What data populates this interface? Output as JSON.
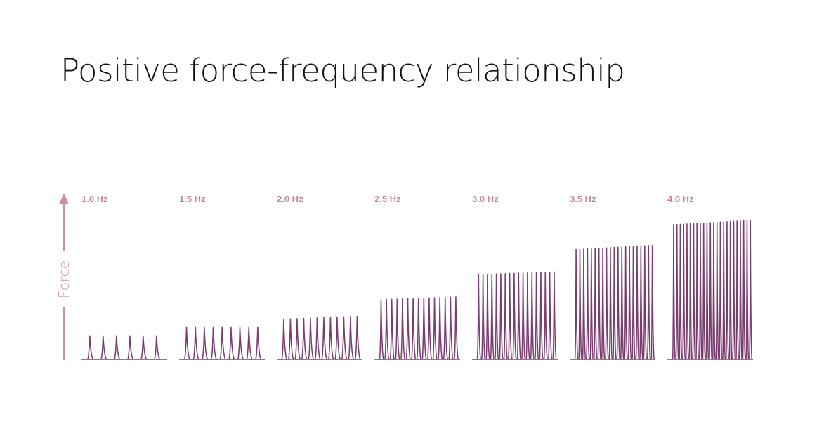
{
  "chart_data": {
    "type": "line",
    "title": "Positive force-frequency relationship",
    "ylabel": "Force",
    "xlabel": "",
    "grid": false,
    "legend": "none",
    "colors": {
      "trace": "#7b3d70",
      "label": "#c7849b",
      "axis": "#cc8ea3"
    },
    "series": [
      {
        "name": "1.0 Hz",
        "frequency_hz": 1.0,
        "beats": 6,
        "peak_force_relative_start": 0.17,
        "peak_force_relative_end": 0.17
      },
      {
        "name": "1.5 Hz",
        "frequency_hz": 1.5,
        "beats": 9,
        "peak_force_relative_start": 0.23,
        "peak_force_relative_end": 0.23
      },
      {
        "name": "2.0 Hz",
        "frequency_hz": 2.0,
        "beats": 12,
        "peak_force_relative_start": 0.29,
        "peak_force_relative_end": 0.31
      },
      {
        "name": "2.5 Hz",
        "frequency_hz": 2.5,
        "beats": 15,
        "peak_force_relative_start": 0.43,
        "peak_force_relative_end": 0.45
      },
      {
        "name": "3.0 Hz",
        "frequency_hz": 3.0,
        "beats": 18,
        "peak_force_relative_start": 0.61,
        "peak_force_relative_end": 0.63
      },
      {
        "name": "3.5 Hz",
        "frequency_hz": 3.5,
        "beats": 21,
        "peak_force_relative_start": 0.79,
        "peak_force_relative_end": 0.82
      },
      {
        "name": "4.0 Hz",
        "frequency_hz": 4.0,
        "beats": 24,
        "peak_force_relative_start": 0.97,
        "peak_force_relative_end": 1.0
      }
    ]
  }
}
